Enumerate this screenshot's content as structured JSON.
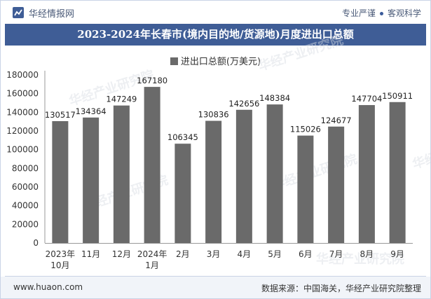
{
  "header": {
    "site_name": "华经情报网",
    "tagline_left": "专业严谨",
    "tagline_right": "客观科学"
  },
  "watermark": "华经产业研究院",
  "footer": {
    "url": "www.huaon.com",
    "source": "数据来源：中国海关，华经产业研究院整理"
  },
  "colors": {
    "title_bg": "#3f5d96",
    "bar": "#6a6a6a"
  },
  "chart_data": {
    "type": "bar",
    "title": "2023-2024年长春市(境内目的地/货源地)月度进出口总额",
    "legend": "进出口总额(万美元)",
    "categories": [
      [
        "2023年",
        "10月"
      ],
      [
        "11月"
      ],
      [
        "12月"
      ],
      [
        "2024年",
        "1月"
      ],
      [
        "2月"
      ],
      [
        "3月"
      ],
      [
        "4月"
      ],
      [
        "5月"
      ],
      [
        "6月"
      ],
      [
        "7月"
      ],
      [
        "8月"
      ],
      [
        "9月"
      ]
    ],
    "series": [
      {
        "name": "进出口总额(万美元)",
        "values": [
          130517,
          134364,
          147249,
          167180,
          106345,
          130836,
          142656,
          148384,
          115026,
          124677,
          147704,
          150911
        ]
      }
    ],
    "ylim": [
      0,
      180000
    ],
    "yticks": [
      0,
      20000,
      40000,
      60000,
      80000,
      100000,
      120000,
      140000,
      160000,
      180000
    ],
    "xlabel": "",
    "ylabel": "",
    "grid": false
  }
}
